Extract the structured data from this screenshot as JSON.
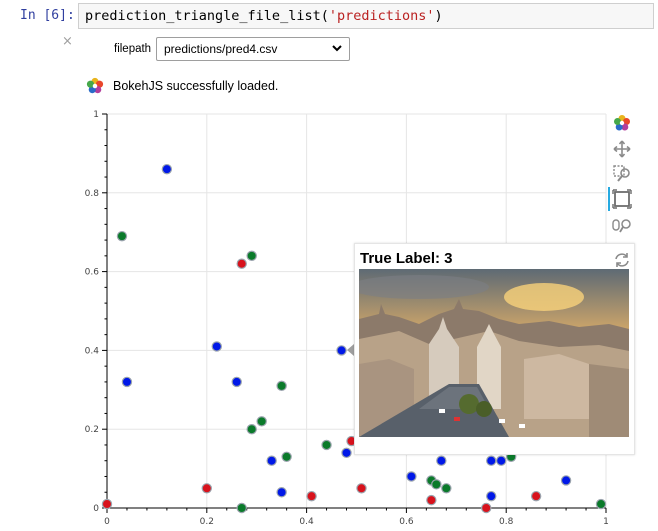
{
  "cell": {
    "prompt": "In [6]:",
    "code_func": "prediction_triangle_file_list(",
    "code_arg": "'predictions'",
    "code_close": ")"
  },
  "widget": {
    "close_icon": "×",
    "filepath_label": "filepath",
    "filepath_value": "predictions/pred4.csv"
  },
  "bokeh": {
    "loaded_text": "BokehJS successfully loaded."
  },
  "tooltip": {
    "title": "True Label: 3"
  },
  "colors": {
    "blue": "#0018e8",
    "green": "#0a7a2a",
    "red": "#d8121c",
    "prompt": "#303f9f",
    "string": "#ba2121",
    "toolbar_active": "#26aae1"
  },
  "chart_data": {
    "type": "scatter",
    "xlim": [
      0,
      1
    ],
    "ylim": [
      0,
      1
    ],
    "x_ticks": [
      "0",
      "0.2",
      "0.4",
      "0.6",
      "0.8",
      "1"
    ],
    "y_ticks": [
      "0",
      "0.2",
      "0.4",
      "0.6",
      "0.8",
      "1"
    ],
    "grid": true,
    "series": [
      {
        "color": "blue",
        "points": [
          [
            0.12,
            0.86
          ],
          [
            0.22,
            0.41
          ],
          [
            0.04,
            0.32
          ],
          [
            0.26,
            0.32
          ],
          [
            0.47,
            0.4
          ],
          [
            0.33,
            0.12
          ],
          [
            0.35,
            0.04
          ],
          [
            0.48,
            0.14
          ],
          [
            0.61,
            0.08
          ],
          [
            0.67,
            0.12
          ],
          [
            0.77,
            0.12
          ],
          [
            0.79,
            0.12
          ],
          [
            0.92,
            0.07
          ],
          [
            0.77,
            0.03
          ]
        ]
      },
      {
        "color": "green",
        "points": [
          [
            0.03,
            0.69
          ],
          [
            0.29,
            0.64
          ],
          [
            0.35,
            0.31
          ],
          [
            0.31,
            0.22
          ],
          [
            0.29,
            0.2
          ],
          [
            0.36,
            0.13
          ],
          [
            0.44,
            0.16
          ],
          [
            0.65,
            0.07
          ],
          [
            0.66,
            0.06
          ],
          [
            0.68,
            0.05
          ],
          [
            0.81,
            0.13
          ],
          [
            0.27,
            0.0
          ],
          [
            0.99,
            0.01
          ]
        ]
      },
      {
        "color": "red",
        "points": [
          [
            0.27,
            0.62
          ],
          [
            0.0,
            0.01
          ],
          [
            0.2,
            0.05
          ],
          [
            0.41,
            0.03
          ],
          [
            0.51,
            0.05
          ],
          [
            0.65,
            0.02
          ],
          [
            0.86,
            0.03
          ],
          [
            0.76,
            0.0
          ],
          [
            0.49,
            0.17
          ]
        ]
      }
    ]
  }
}
